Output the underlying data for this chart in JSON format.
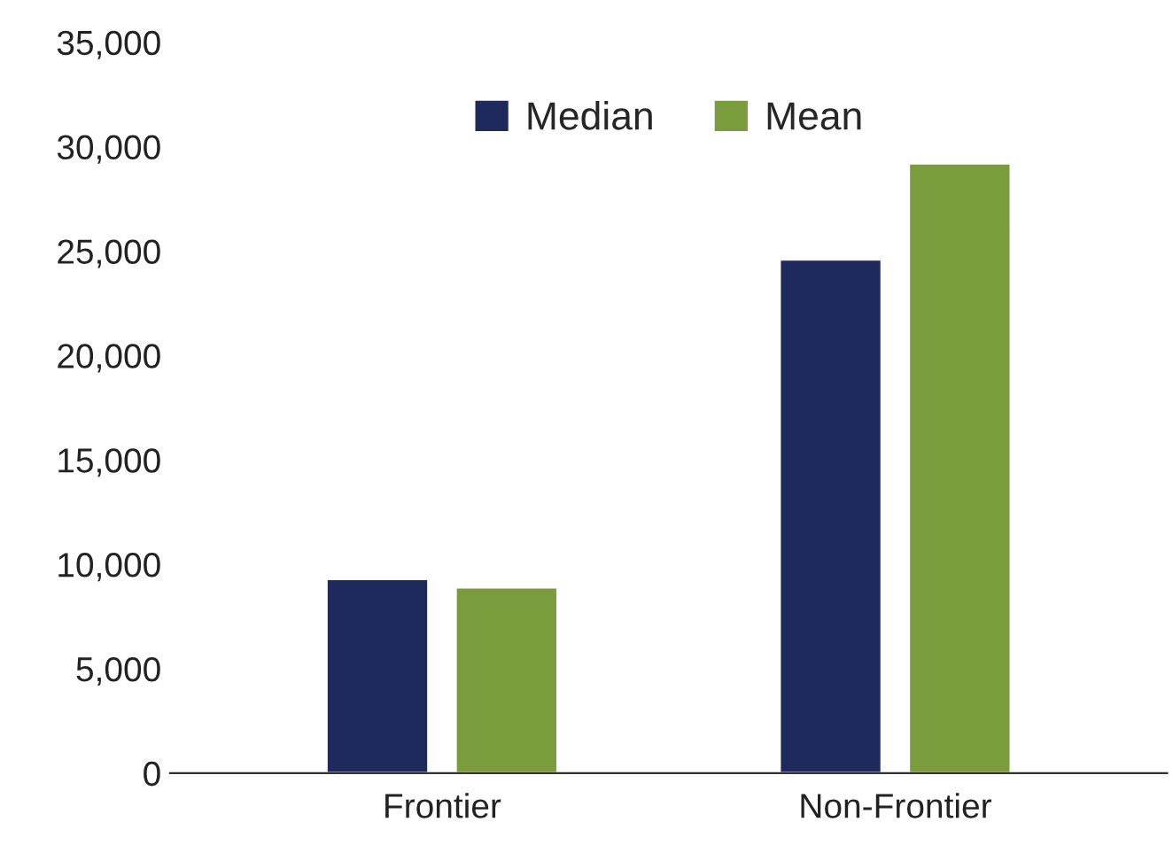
{
  "chart_data": {
    "type": "bar",
    "categories": [
      "Frontier",
      "Non-Frontier"
    ],
    "series": [
      {
        "name": "Median",
        "color": "#1f2a5c",
        "values": [
          9300,
          24600
        ]
      },
      {
        "name": "Mean",
        "color": "#7a9c3c",
        "values": [
          8900,
          29200
        ]
      }
    ],
    "ylim": [
      0,
      35000
    ],
    "yticks": [
      {
        "value": 0,
        "label": "0"
      },
      {
        "value": 5000,
        "label": "5,000"
      },
      {
        "value": 10000,
        "label": "10,000"
      },
      {
        "value": 15000,
        "label": "15,000"
      },
      {
        "value": 20000,
        "label": "20,000"
      },
      {
        "value": 25000,
        "label": "25,000"
      },
      {
        "value": 30000,
        "label": "30,000"
      },
      {
        "value": 35000,
        "label": "35,000"
      }
    ],
    "grid": false,
    "legend": "top"
  }
}
